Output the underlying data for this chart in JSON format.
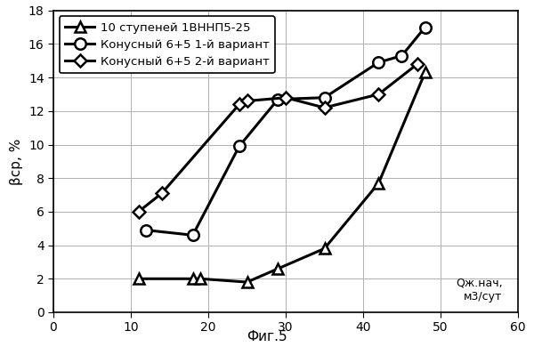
{
  "series1_label": "10 ступеней 1ВННП5-25",
  "series2_label": "Конусный 6+5 1-й вариант",
  "series3_label": "Конусный 6+5 2-й вариант",
  "series1_x": [
    11,
    18,
    19,
    25,
    29,
    35,
    42,
    48
  ],
  "series1_y": [
    2.0,
    2.0,
    2.0,
    1.8,
    2.6,
    3.8,
    7.7,
    14.3
  ],
  "series2_x": [
    12,
    18,
    24,
    29,
    35,
    42,
    45,
    48
  ],
  "series2_y": [
    4.9,
    4.6,
    9.9,
    12.7,
    12.8,
    14.9,
    15.3,
    17.0
  ],
  "series3_x": [
    11,
    14,
    24,
    25,
    30,
    35,
    42,
    47
  ],
  "series3_y": [
    6.0,
    7.1,
    12.4,
    12.6,
    12.8,
    12.2,
    13.0,
    14.8
  ],
  "xlabel_line1": "Qж.нач,",
  "xlabel_line2": "м3/сут",
  "ylabel": "βср, %",
  "xlim": [
    0,
    60
  ],
  "ylim": [
    0,
    18
  ],
  "xticks": [
    0,
    10,
    20,
    30,
    40,
    50,
    60
  ],
  "yticks": [
    0,
    2,
    4,
    6,
    8,
    10,
    12,
    14,
    16,
    18
  ],
  "fig_label": "Фиг.5",
  "line_color": "#000000",
  "bg_color": "#ffffff"
}
